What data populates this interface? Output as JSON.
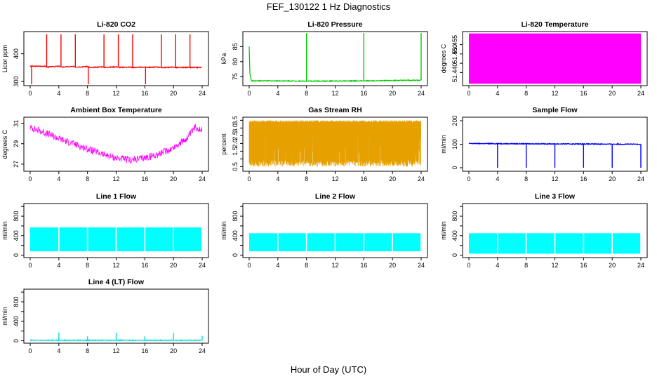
{
  "figure": {
    "title": "FEF_130122  1 Hz Diagnostics",
    "xlabel": "Hour of Day (UTC)"
  },
  "chart_data": [
    {
      "type": "line",
      "title": "Li-820 CO2",
      "ylabel": "Licor ppm",
      "color": "#ff0000",
      "xlim": [
        0,
        24
      ],
      "x_ticks": [
        0,
        4,
        8,
        12,
        16,
        20,
        24
      ],
      "ylim": [
        285,
        480
      ],
      "y_ticks": [
        300,
        400
      ],
      "x": [
        0,
        2,
        2.4,
        4,
        4.4,
        6,
        6.4,
        8,
        8.4,
        10,
        10.4,
        12,
        12.4,
        14,
        14.4,
        16,
        16.4,
        18,
        18.4,
        20,
        20.4,
        22,
        22.4,
        24
      ],
      "y": [
        355,
        355,
        352,
        355,
        352,
        354,
        352,
        354,
        350,
        353,
        351,
        353,
        351,
        352,
        350,
        352,
        351,
        352,
        350,
        352,
        350,
        351,
        350,
        351
      ],
      "spikes_up_x": [
        2.3,
        4.3,
        6.3,
        10.3,
        12.3,
        14.3,
        18.3,
        20.3,
        22.3
      ],
      "spikes_up_y": 470,
      "spikes_down_x": [
        0.2,
        8.1,
        16.1
      ],
      "spikes_down_y": 290
    },
    {
      "type": "line",
      "title": "Li-820 Pressure",
      "ylabel": "kPa",
      "color": "#00cc00",
      "xlim": [
        0,
        24
      ],
      "x_ticks": [
        0,
        4,
        8,
        12,
        16,
        20,
        24
      ],
      "ylim": [
        72,
        90
      ],
      "y_ticks": [
        75,
        80,
        85
      ],
      "x": [
        0,
        0.1,
        0.3,
        4,
        8,
        12,
        16,
        20,
        24
      ],
      "y": [
        85,
        76,
        73.6,
        73.6,
        73.5,
        73.5,
        73.6,
        73.7,
        73.8
      ],
      "spikes_up_x": [
        8,
        16,
        24
      ],
      "spikes_up_y": 89.5
    },
    {
      "type": "area",
      "title": "Li-820 Temperature",
      "ylabel": "degrees C",
      "color": "#ff00ff",
      "xlim": [
        0,
        24
      ],
      "x_ticks": [
        0,
        4,
        8,
        12,
        16,
        20,
        24
      ],
      "ylim": [
        51.433,
        51.462
      ],
      "y_ticks": [
        51.44,
        51.445,
        51.45,
        51.455
      ],
      "y_tick_labels": [
        "51.440",
        "",
        "51.450",
        "51.455"
      ],
      "band_low": 51.434,
      "band_high": 51.461
    },
    {
      "type": "line",
      "title": "Ambient Box Temperature",
      "ylabel": "degrees C",
      "color": "#ff00ff",
      "xlim": [
        0,
        24
      ],
      "x_ticks": [
        0,
        4,
        8,
        12,
        16,
        20,
        24
      ],
      "ylim": [
        26.3,
        31.6
      ],
      "y_ticks": [
        27,
        29,
        31
      ],
      "x": [
        0,
        2,
        4,
        6,
        8,
        10,
        12,
        14,
        16,
        18,
        20,
        22,
        23,
        24
      ],
      "y": [
        30.6,
        30.1,
        29.5,
        29.0,
        28.5,
        28.0,
        27.6,
        27.4,
        27.6,
        28.0,
        28.6,
        29.6,
        30.6,
        30.4
      ],
      "noise": 0.35
    },
    {
      "type": "line",
      "title": "Gas Stream RH",
      "ylabel": "percent",
      "color": "#e6a000",
      "xlim": [
        0,
        24
      ],
      "x_ticks": [
        0,
        4,
        8,
        12,
        16,
        20,
        24
      ],
      "ylim": [
        0.2,
        3.7
      ],
      "y_ticks": [
        0.5,
        1,
        1.5,
        2,
        2.5,
        3,
        3.5
      ],
      "y_tick_labels": [
        "0.5",
        "",
        "1.5",
        "2.0",
        "2.5",
        "3.0",
        "3.5"
      ],
      "band_low": 0.5,
      "band_high": 3.5
    },
    {
      "type": "line",
      "title": "Sample Flow",
      "ylabel": "ml/min",
      "color": "#0000ff",
      "xlim": [
        0,
        24
      ],
      "x_ticks": [
        0,
        4,
        8,
        12,
        16,
        20,
        24
      ],
      "ylim": [
        -15,
        215
      ],
      "y_ticks": [
        0,
        100,
        200
      ],
      "x": [
        0,
        24
      ],
      "y": [
        103,
        100
      ],
      "spikes_down_x": [
        4,
        8,
        12,
        16,
        20,
        24
      ],
      "spikes_down_y": 0
    },
    {
      "type": "area",
      "title": "Line 1 Flow",
      "ylabel": "ml/min",
      "color": "#00ffff",
      "xlim": [
        0,
        24
      ],
      "x_ticks": [
        0,
        4,
        8,
        12,
        16,
        20,
        24
      ],
      "ylim": [
        -50,
        1060
      ],
      "y_ticks": [
        0,
        200,
        400,
        600,
        800,
        1000
      ],
      "y_tick_labels": [
        "0",
        "",
        "400",
        "",
        "800",
        ""
      ],
      "band_low": 80,
      "band_high": 570,
      "gaps_x": [
        4,
        8,
        12,
        16,
        20,
        24
      ]
    },
    {
      "type": "area",
      "title": "Line 2 Flow",
      "ylabel": "ml/min",
      "color": "#00ffff",
      "xlim": [
        0,
        24
      ],
      "x_ticks": [
        0,
        4,
        8,
        12,
        16,
        20,
        24
      ],
      "ylim": [
        -50,
        1060
      ],
      "y_ticks": [
        0,
        200,
        400,
        600,
        800,
        1000
      ],
      "y_tick_labels": [
        "0",
        "",
        "400",
        "",
        "800",
        ""
      ],
      "band_low": 80,
      "band_high": 450,
      "gaps_x": [
        4,
        8,
        12,
        16,
        20,
        24
      ]
    },
    {
      "type": "area",
      "title": "Line 3 Flow",
      "ylabel": "ml/min",
      "color": "#00ffff",
      "xlim": [
        0,
        24
      ],
      "x_ticks": [
        0,
        4,
        8,
        12,
        16,
        20,
        24
      ],
      "ylim": [
        -50,
        1060
      ],
      "y_ticks": [
        0,
        200,
        400,
        600,
        800,
        1000
      ],
      "y_tick_labels": [
        "0",
        "",
        "400",
        "",
        "800",
        ""
      ],
      "band_low": 30,
      "band_high": 450,
      "gaps_x": [
        4,
        8,
        12,
        16,
        20,
        24
      ]
    },
    {
      "type": "line",
      "title": "Line 4 (LT) Flow",
      "ylabel": "ml/min",
      "color": "#00e0e0",
      "xlim": [
        0,
        24
      ],
      "x_ticks": [
        0,
        4,
        8,
        12,
        16,
        20,
        24
      ],
      "ylim": [
        -50,
        1060
      ],
      "y_ticks": [
        0,
        200,
        400,
        600,
        800,
        1000
      ],
      "y_tick_labels": [
        "0",
        "",
        "400",
        "",
        "800",
        ""
      ],
      "x": [
        0,
        24
      ],
      "y": [
        10,
        10
      ],
      "spikes_up_x": [
        4,
        8,
        12,
        16,
        20,
        24
      ],
      "spikes_up_y_values": [
        170,
        90,
        160,
        90,
        160,
        100
      ]
    }
  ]
}
